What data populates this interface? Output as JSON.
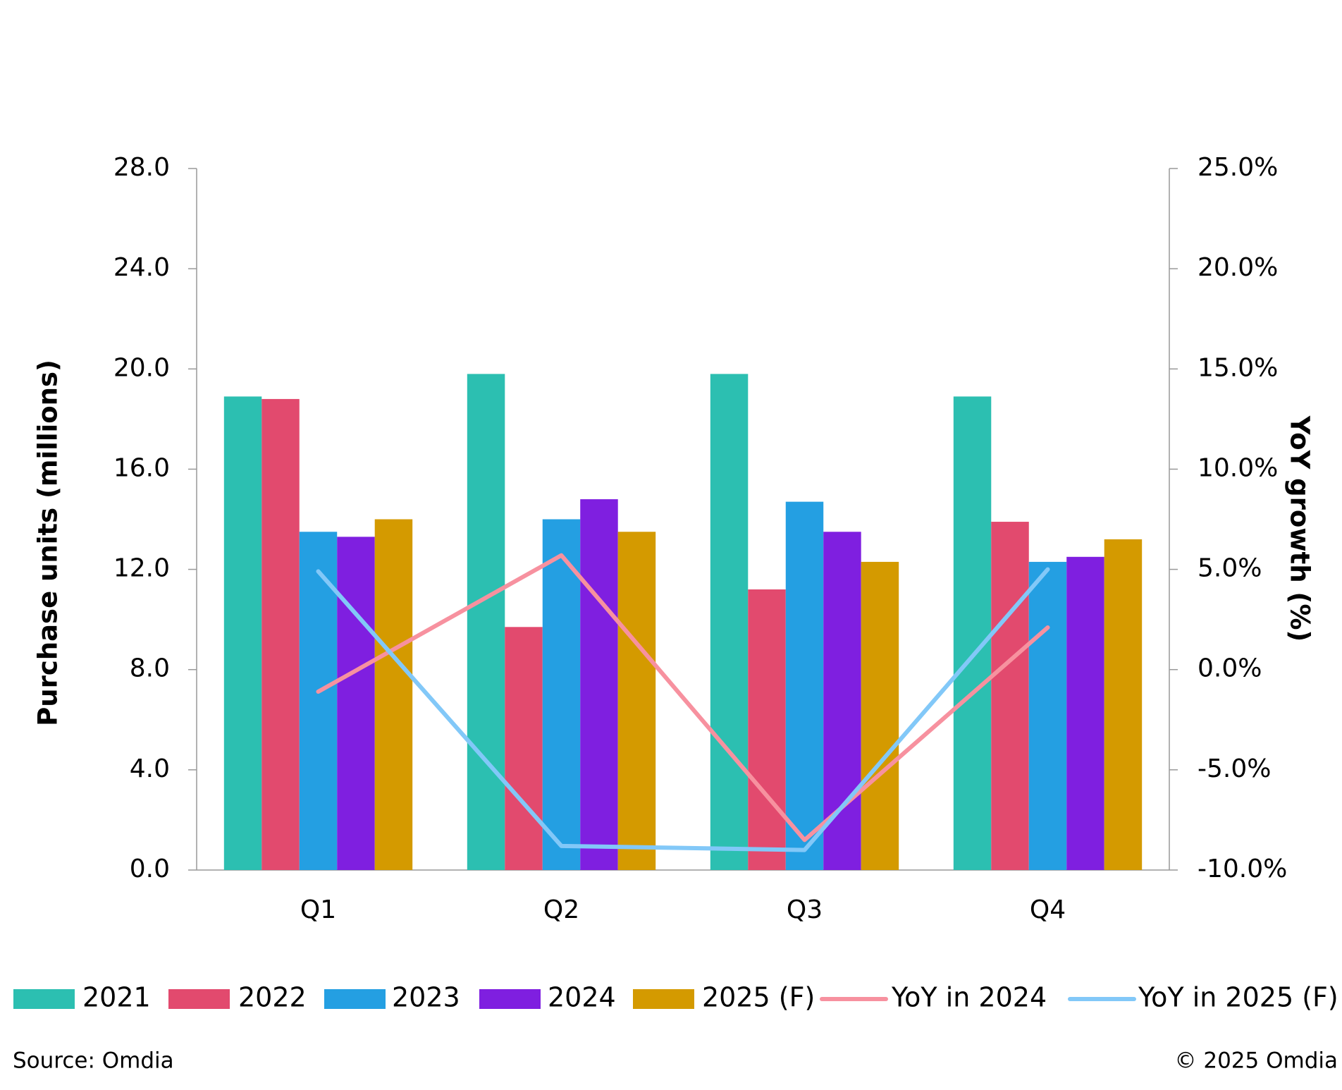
{
  "chart_data": {
    "type": "bar",
    "categories": [
      "Q1",
      "Q2",
      "Q3",
      "Q4"
    ],
    "y_label": "Purchase units (millions)",
    "y2_label": "YoY growth (%)",
    "ylim": [
      0,
      28
    ],
    "yticks": [
      {
        "value": 0,
        "label": "0.0"
      },
      {
        "value": 4,
        "label": "4.0"
      },
      {
        "value": 8,
        "label": "8.0"
      },
      {
        "value": 12,
        "label": "12.0"
      },
      {
        "value": 16,
        "label": "16.0"
      },
      {
        "value": 20,
        "label": "20.0"
      },
      {
        "value": 24,
        "label": "24.0"
      },
      {
        "value": 28,
        "label": "28.0"
      }
    ],
    "y2lim": [
      -10,
      25
    ],
    "y2ticks": [
      {
        "value": -10,
        "label": "-10.0%"
      },
      {
        "value": -5,
        "label": "-5.0%"
      },
      {
        "value": 0,
        "label": "0.0%"
      },
      {
        "value": 5,
        "label": "5.0%"
      },
      {
        "value": 10,
        "label": "10.0%"
      },
      {
        "value": 15,
        "label": "15.0%"
      },
      {
        "value": 20,
        "label": "20.0%"
      },
      {
        "value": 25,
        "label": "25.0%"
      }
    ],
    "grid": false,
    "series": [
      {
        "name": "2021",
        "type": "bar",
        "color": "#2cbfb1",
        "values": [
          18.9,
          19.8,
          19.8,
          18.9
        ]
      },
      {
        "name": "2022",
        "type": "bar",
        "color": "#e24a6e",
        "values": [
          18.8,
          9.7,
          11.2,
          13.9
        ]
      },
      {
        "name": "2023",
        "type": "bar",
        "color": "#249fe2",
        "values": [
          13.5,
          14.0,
          14.7,
          12.3
        ]
      },
      {
        "name": "2024",
        "type": "bar",
        "color": "#7f1fe0",
        "values": [
          13.3,
          14.8,
          13.5,
          12.5
        ]
      },
      {
        "name": "2025 (F)",
        "type": "bar",
        "color": "#d49a00",
        "values": [
          14.0,
          13.5,
          12.3,
          13.2
        ]
      },
      {
        "name": "YoY in 2024",
        "type": "line",
        "axis": "y2",
        "color": "#f7919f",
        "values": [
          -1.1,
          5.7,
          -8.5,
          2.1
        ]
      },
      {
        "name": "YoY in 2025 (F)",
        "type": "line",
        "axis": "y2",
        "color": "#82c8f8",
        "values": [
          4.9,
          -8.8,
          -9.0,
          5.0
        ]
      }
    ],
    "legend": "bottom",
    "source": "Source: Omdia",
    "copyright": "© 2025 Omdia"
  }
}
